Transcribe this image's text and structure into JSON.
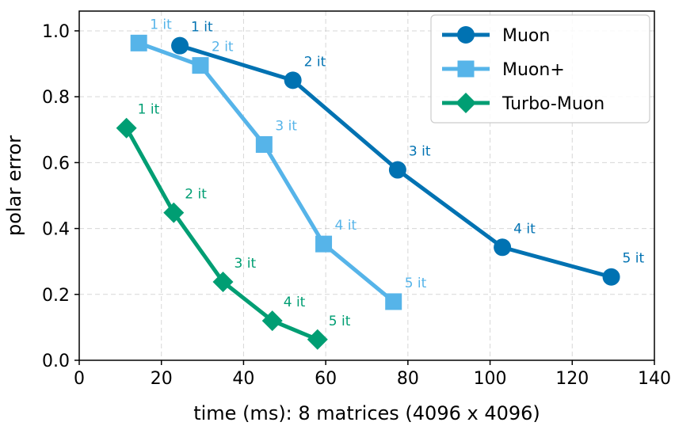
{
  "chart_data": {
    "type": "line",
    "title": "",
    "xlabel": "time (ms): 8 matrices (4096 x 4096)",
    "ylabel": "polar error",
    "xlim": [
      0,
      140
    ],
    "ylim": [
      0,
      1.06
    ],
    "xticks": [
      0,
      20,
      40,
      60,
      80,
      100,
      120,
      140
    ],
    "yticks": [
      0.0,
      0.2,
      0.4,
      0.6,
      0.8,
      1.0
    ],
    "xtick_labels": [
      "0",
      "20",
      "40",
      "60",
      "80",
      "100",
      "120",
      "140"
    ],
    "ytick_labels": [
      "0.0",
      "0.2",
      "0.4",
      "0.6",
      "0.8",
      "1.0"
    ],
    "grid": true,
    "legend_position": "top-right",
    "series": [
      {
        "name": "Muon",
        "color": "#0072b2",
        "marker": "circle",
        "x": [
          24.5,
          52,
          77.5,
          103,
          129.5
        ],
        "y": [
          0.955,
          0.85,
          0.578,
          0.343,
          0.253
        ],
        "labels": [
          "1 it",
          "2 it",
          "3 it",
          "4 it",
          "5 it"
        ]
      },
      {
        "name": "Muon+",
        "color": "#56b4e9",
        "marker": "square",
        "x": [
          14.5,
          29.5,
          45,
          59.5,
          76.5
        ],
        "y": [
          0.963,
          0.895,
          0.655,
          0.353,
          0.178
        ],
        "labels": [
          "1 it",
          "2 it",
          "3 it",
          "4 it",
          "5 it"
        ]
      },
      {
        "name": "Turbo-Muon",
        "color": "#009e73",
        "marker": "diamond",
        "x": [
          11.5,
          23,
          35,
          47,
          58
        ],
        "y": [
          0.705,
          0.448,
          0.238,
          0.12,
          0.063
        ],
        "labels": [
          "1 it",
          "2 it",
          "3 it",
          "4 it",
          "5 it"
        ]
      }
    ]
  }
}
